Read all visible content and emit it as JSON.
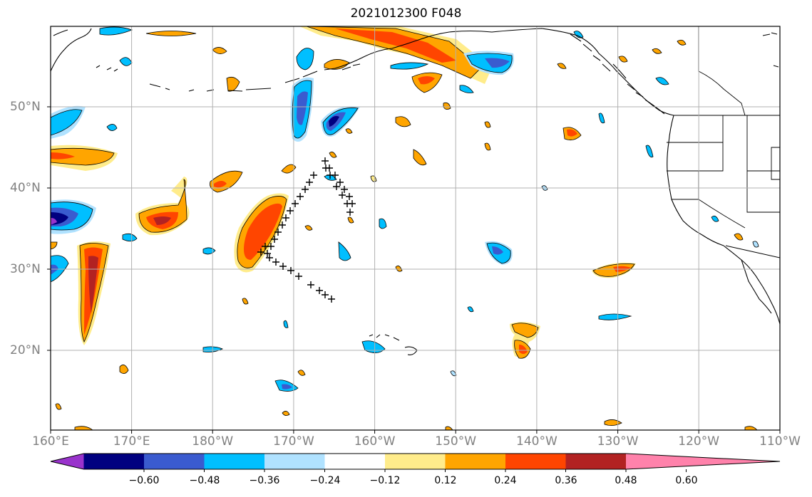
{
  "title": "2021012300 F048",
  "lon_labels": [
    "160°E",
    "170°E",
    "180°W",
    "170°W",
    "160°W",
    "150°W",
    "140°W",
    "130°W",
    "120°W",
    "110°W"
  ],
  "lat_labels": [
    "50°N",
    "40°N",
    "30°N",
    "20°N"
  ],
  "colorbar": {
    "labels": [
      "−0.60",
      "−0.48",
      "−0.36",
      "−0.24",
      "−0.12",
      "0.12",
      "0.24",
      "0.36",
      "0.48",
      "0.60"
    ],
    "colors": [
      "#9933cc",
      "#000080",
      "#3a5bcf",
      "#00bfff",
      "#b0e2ff",
      "#ffffff",
      "#ffec8b",
      "#ffa500",
      "#ff4500",
      "#b22222",
      "#ff82ab"
    ]
  },
  "track_marker": "+",
  "colors": {
    "grid": "#b0b0b0",
    "coast": "#000000",
    "label": "#808080"
  }
}
